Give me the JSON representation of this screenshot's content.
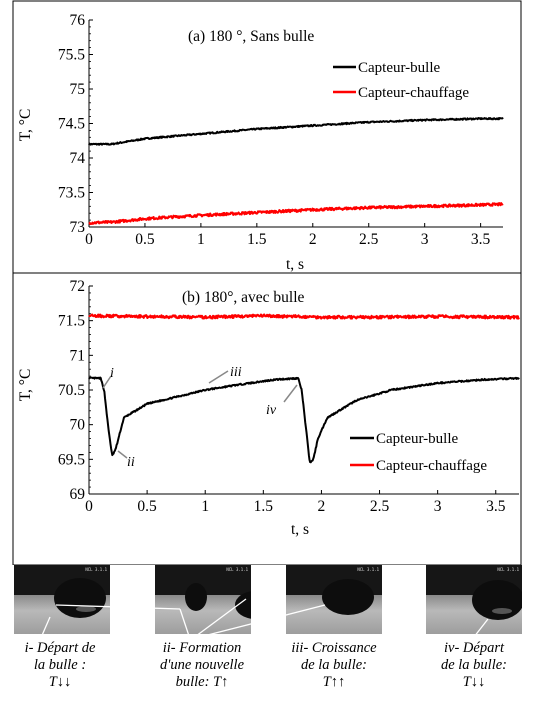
{
  "chart_data": [
    {
      "type": "line",
      "title": "(a) 180 °, Sans bulle",
      "xlabel": "t, s",
      "ylabel": "T, °C",
      "xlim": [
        0,
        3.7
      ],
      "ylim": [
        73,
        76
      ],
      "xticks": [
        "0",
        "0.5",
        "1",
        "1.5",
        "2",
        "2.5",
        "3",
        "3.5"
      ],
      "yticks": [
        "73",
        "73.5",
        "74",
        "74.5",
        "75",
        "75.5",
        "76"
      ],
      "grid": false,
      "legend": "top-right",
      "series": [
        {
          "name": "Capteur-bulle",
          "color": "#000000",
          "x": [
            0,
            0.2,
            0.5,
            1.0,
            1.5,
            2.0,
            2.5,
            3.0,
            3.5,
            3.7
          ],
          "y": [
            74.2,
            74.2,
            74.28,
            74.35,
            74.42,
            74.47,
            74.52,
            74.55,
            74.57,
            74.57
          ]
        },
        {
          "name": "Capteur-chauffage",
          "color": "#ff0000",
          "x": [
            0,
            0.2,
            0.5,
            1.0,
            1.5,
            2.0,
            2.5,
            3.0,
            3.5,
            3.7
          ],
          "y": [
            73.06,
            73.07,
            73.12,
            73.17,
            73.21,
            73.25,
            73.28,
            73.3,
            73.32,
            73.33
          ]
        }
      ]
    },
    {
      "type": "line",
      "title": "(b) 180°, avec bulle",
      "xlabel": "t, s",
      "ylabel": "T, °C",
      "xlim": [
        0,
        3.7
      ],
      "ylim": [
        69,
        72
      ],
      "xticks": [
        "0",
        "0.5",
        "1",
        "1.5",
        "2",
        "2.5",
        "3",
        "3.5"
      ],
      "yticks": [
        "69",
        "69.5",
        "70",
        "70.5",
        "71",
        "71.5",
        "72"
      ],
      "grid": false,
      "legend": "bottom-right",
      "series": [
        {
          "name": "Capteur-bulle",
          "color": "#000000",
          "x": [
            0,
            0.1,
            0.13,
            0.17,
            0.2,
            0.23,
            0.3,
            0.5,
            0.8,
            1.0,
            1.3,
            1.6,
            1.8,
            1.83,
            1.87,
            1.9,
            1.93,
            1.97,
            2.05,
            2.3,
            2.6,
            3.0,
            3.4,
            3.7
          ],
          "y": [
            70.67,
            70.67,
            70.5,
            69.9,
            69.55,
            69.65,
            70.1,
            70.3,
            70.42,
            70.5,
            70.58,
            70.65,
            70.67,
            70.5,
            69.9,
            69.45,
            69.5,
            69.8,
            70.1,
            70.35,
            70.5,
            70.6,
            70.65,
            70.67
          ]
        },
        {
          "name": "Capteur-chauffage",
          "color": "#ff0000",
          "x": [
            0,
            0.5,
            1.0,
            1.5,
            2.0,
            2.5,
            3.0,
            3.5,
            3.7
          ],
          "y": [
            71.57,
            71.56,
            71.55,
            71.57,
            71.55,
            71.55,
            71.56,
            71.55,
            71.55
          ]
        }
      ],
      "annotations": [
        "i",
        "ii",
        "iii",
        "iv"
      ]
    }
  ],
  "photos": {
    "captions": [
      {
        "line1": "i- Départ de",
        "line2": "la bulle :",
        "line3": "T↓↓"
      },
      {
        "line1": "ii- Formation",
        "line2": "d'une nouvelle",
        "line3": "bulle: T↑"
      },
      {
        "line1": "iii- Croissance",
        "line2": "de la bulle:",
        "line3": "T↑↑"
      },
      {
        "line1": "iv- Départ",
        "line2": "de la bulle:",
        "line3": "T↓↓"
      }
    ]
  }
}
